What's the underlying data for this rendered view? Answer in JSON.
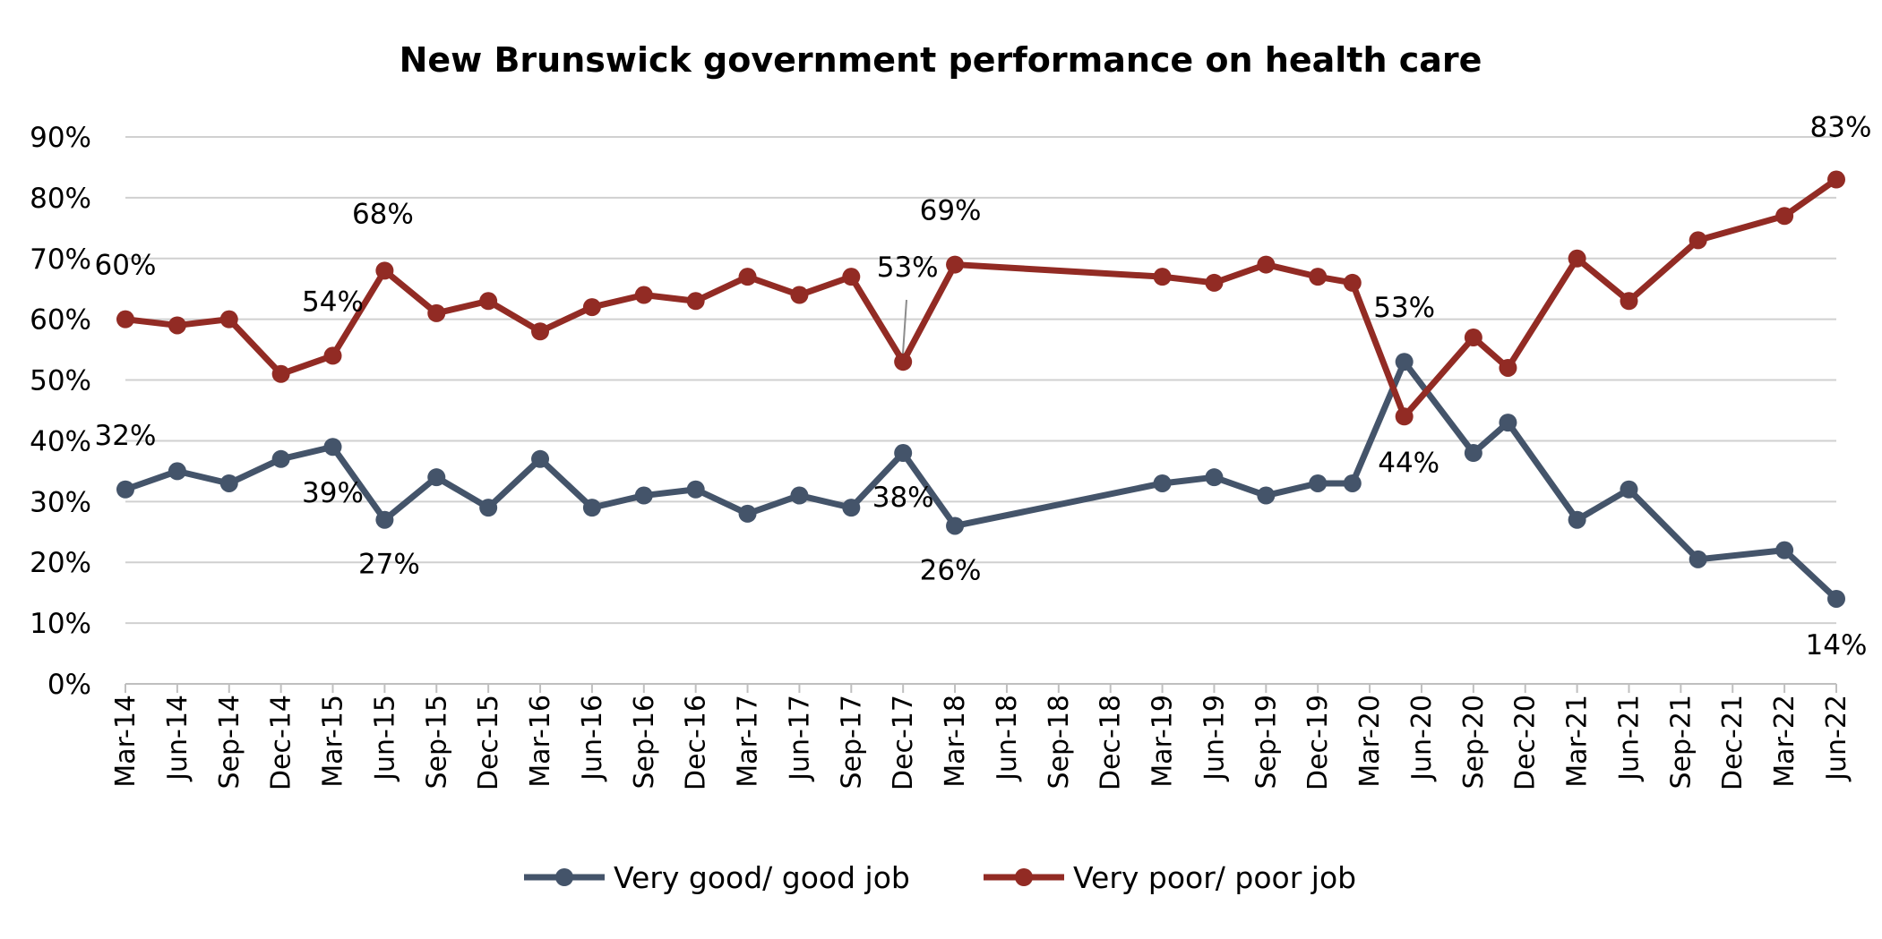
{
  "chart_data": {
    "type": "line",
    "title": "New Brunswick government performance on health care",
    "xlabel": "",
    "ylabel": "",
    "ylim": [
      0,
      90
    ],
    "y_ticks": [
      "0%",
      "10%",
      "20%",
      "30%",
      "40%",
      "50%",
      "60%",
      "70%",
      "80%",
      "90%"
    ],
    "grid": true,
    "legend_position": "bottom",
    "x_ticks": [
      "Mar-14",
      "Jun-14",
      "Sep-14",
      "Dec-14",
      "Mar-15",
      "Jun-15",
      "Sep-15",
      "Dec-15",
      "Mar-16",
      "Jun-16",
      "Sep-16",
      "Dec-16",
      "Mar-17",
      "Jun-17",
      "Sep-17",
      "Dec-17",
      "Mar-18",
      "Jun-18",
      "Sep-18",
      "Dec-18",
      "Mar-19",
      "Jun-19",
      "Sep-19",
      "Dec-19",
      "Mar-20",
      "Jun-20",
      "Sep-20",
      "Dec-20",
      "Mar-21",
      "Jun-21",
      "Sep-21",
      "Dec-21",
      "Mar-22",
      "Jun-22"
    ],
    "series": [
      {
        "name": "Very good/ good job",
        "color": "#44546a",
        "points": [
          {
            "x": "2014-03",
            "y": 32,
            "label": "32%"
          },
          {
            "x": "2014-06",
            "y": 35
          },
          {
            "x": "2014-09",
            "y": 33
          },
          {
            "x": "2014-12",
            "y": 37
          },
          {
            "x": "2015-03",
            "y": 39,
            "label": "39%"
          },
          {
            "x": "2015-06",
            "y": 27,
            "label": "27%"
          },
          {
            "x": "2015-09",
            "y": 34
          },
          {
            "x": "2015-12",
            "y": 29
          },
          {
            "x": "2016-03",
            "y": 37
          },
          {
            "x": "2016-06",
            "y": 29
          },
          {
            "x": "2016-09",
            "y": 31
          },
          {
            "x": "2016-12",
            "y": 32
          },
          {
            "x": "2017-03",
            "y": 28
          },
          {
            "x": "2017-06",
            "y": 31
          },
          {
            "x": "2017-09",
            "y": 29
          },
          {
            "x": "2017-12",
            "y": 38,
            "label": "38%"
          },
          {
            "x": "2018-03",
            "y": 26,
            "label": "26%"
          },
          {
            "x": "2019-03",
            "y": 33
          },
          {
            "x": "2019-06",
            "y": 34
          },
          {
            "x": "2019-09",
            "y": 31
          },
          {
            "x": "2019-12",
            "y": 33
          },
          {
            "x": "2020-02",
            "y": 33
          },
          {
            "x": "2020-05",
            "y": 53,
            "label": "53%"
          },
          {
            "x": "2020-09",
            "y": 38
          },
          {
            "x": "2020-11",
            "y": 43
          },
          {
            "x": "2021-03",
            "y": 27
          },
          {
            "x": "2021-06",
            "y": 32
          },
          {
            "x": "2021-10",
            "y": 20.5
          },
          {
            "x": "2022-03",
            "y": 22
          },
          {
            "x": "2022-06",
            "y": 14,
            "label": "14%"
          }
        ]
      },
      {
        "name": "Very poor/ poor job",
        "color": "#922b24",
        "points": [
          {
            "x": "2014-03",
            "y": 60,
            "label": "60%"
          },
          {
            "x": "2014-06",
            "y": 59
          },
          {
            "x": "2014-09",
            "y": 60
          },
          {
            "x": "2014-12",
            "y": 51
          },
          {
            "x": "2015-03",
            "y": 54,
            "label": "54%"
          },
          {
            "x": "2015-06",
            "y": 68,
            "label": "68%"
          },
          {
            "x": "2015-09",
            "y": 61
          },
          {
            "x": "2015-12",
            "y": 63
          },
          {
            "x": "2016-03",
            "y": 58
          },
          {
            "x": "2016-06",
            "y": 62
          },
          {
            "x": "2016-09",
            "y": 64
          },
          {
            "x": "2016-12",
            "y": 63
          },
          {
            "x": "2017-03",
            "y": 67
          },
          {
            "x": "2017-06",
            "y": 64
          },
          {
            "x": "2017-09",
            "y": 67
          },
          {
            "x": "2017-12",
            "y": 53,
            "label": "53%"
          },
          {
            "x": "2018-03",
            "y": 69,
            "label": "69%"
          },
          {
            "x": "2019-03",
            "y": 67
          },
          {
            "x": "2019-06",
            "y": 66
          },
          {
            "x": "2019-09",
            "y": 69
          },
          {
            "x": "2019-12",
            "y": 67
          },
          {
            "x": "2020-02",
            "y": 66
          },
          {
            "x": "2020-05",
            "y": 44,
            "label": "44%"
          },
          {
            "x": "2020-09",
            "y": 57
          },
          {
            "x": "2020-11",
            "y": 52
          },
          {
            "x": "2021-03",
            "y": 70
          },
          {
            "x": "2021-06",
            "y": 63
          },
          {
            "x": "2021-10",
            "y": 73
          },
          {
            "x": "2022-03",
            "y": 77
          },
          {
            "x": "2022-06",
            "y": 83,
            "label": "83%"
          }
        ]
      }
    ]
  }
}
